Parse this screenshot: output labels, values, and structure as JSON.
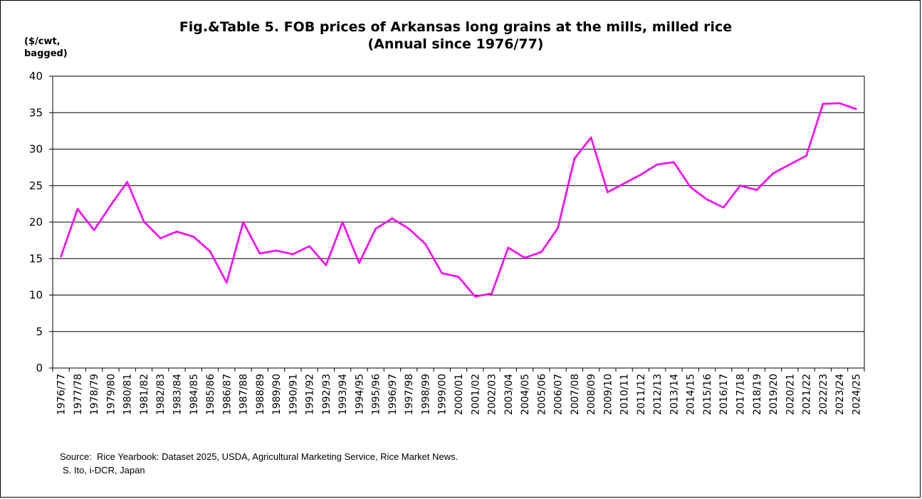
{
  "title_line1": "Fig.&Table 5.  FOB prices of Arkansas long grains at the mills,  milled rice",
  "title_line2": "(Annual since 1976/77)",
  "unit_line1": "($/cwt,",
  "unit_line2": "bagged)",
  "source_line1": "Source:  Rice Yearbook: Dataset 2025, USDA, Agricultural Marketing Service, Rice Market News.",
  "source_line2": "S. Ito, i-DCR, Japan",
  "chart_data": {
    "type": "line",
    "ylim": [
      0,
      40
    ],
    "yticks": [
      0,
      5,
      10,
      15,
      20,
      25,
      30,
      35,
      40
    ],
    "grid": true,
    "line_color": "#FF00FF",
    "categories": [
      "1976/77",
      "1977/78",
      "1978/79",
      "1979/80",
      "1980/81",
      "1981/82",
      "1982/83",
      "1983/84",
      "1984/85",
      "1985/86",
      "1986/87",
      "1987/88",
      "1988/89",
      "1989/90",
      "1990/91",
      "1991/92",
      "1992/93",
      "1993/94",
      "1994/95",
      "1995/96",
      "1996/97",
      "1997/98",
      "1998/99",
      "1999/00",
      "2000/01",
      "2001/02",
      "2002/03",
      "2003/04",
      "2004/05",
      "2005/06",
      "2006/07",
      "2007/08",
      "2008/09",
      "2009/10",
      "2010/11",
      "2011/12",
      "2012/13",
      "2013/14",
      "2014/15",
      "2015/16",
      "2016/17",
      "2017/18",
      "2018/19",
      "2019/20",
      "2020/21",
      "2021/22",
      "2022/23",
      "2023/24",
      "2024/25"
    ],
    "values": [
      15.3,
      21.8,
      18.9,
      22.3,
      25.5,
      20.1,
      17.8,
      18.7,
      18.0,
      16.0,
      11.7,
      20.0,
      15.7,
      16.1,
      15.6,
      16.7,
      14.1,
      20.0,
      14.4,
      19.1,
      20.5,
      19.1,
      17.0,
      13.0,
      12.5,
      9.8,
      10.2,
      16.5,
      15.1,
      15.9,
      19.2,
      28.7,
      31.6,
      24.1,
      25.3,
      26.5,
      27.9,
      28.2,
      24.8,
      23.1,
      22.0,
      25.0,
      24.4,
      26.7,
      27.9,
      29.1,
      36.2,
      36.3,
      35.5
    ]
  }
}
